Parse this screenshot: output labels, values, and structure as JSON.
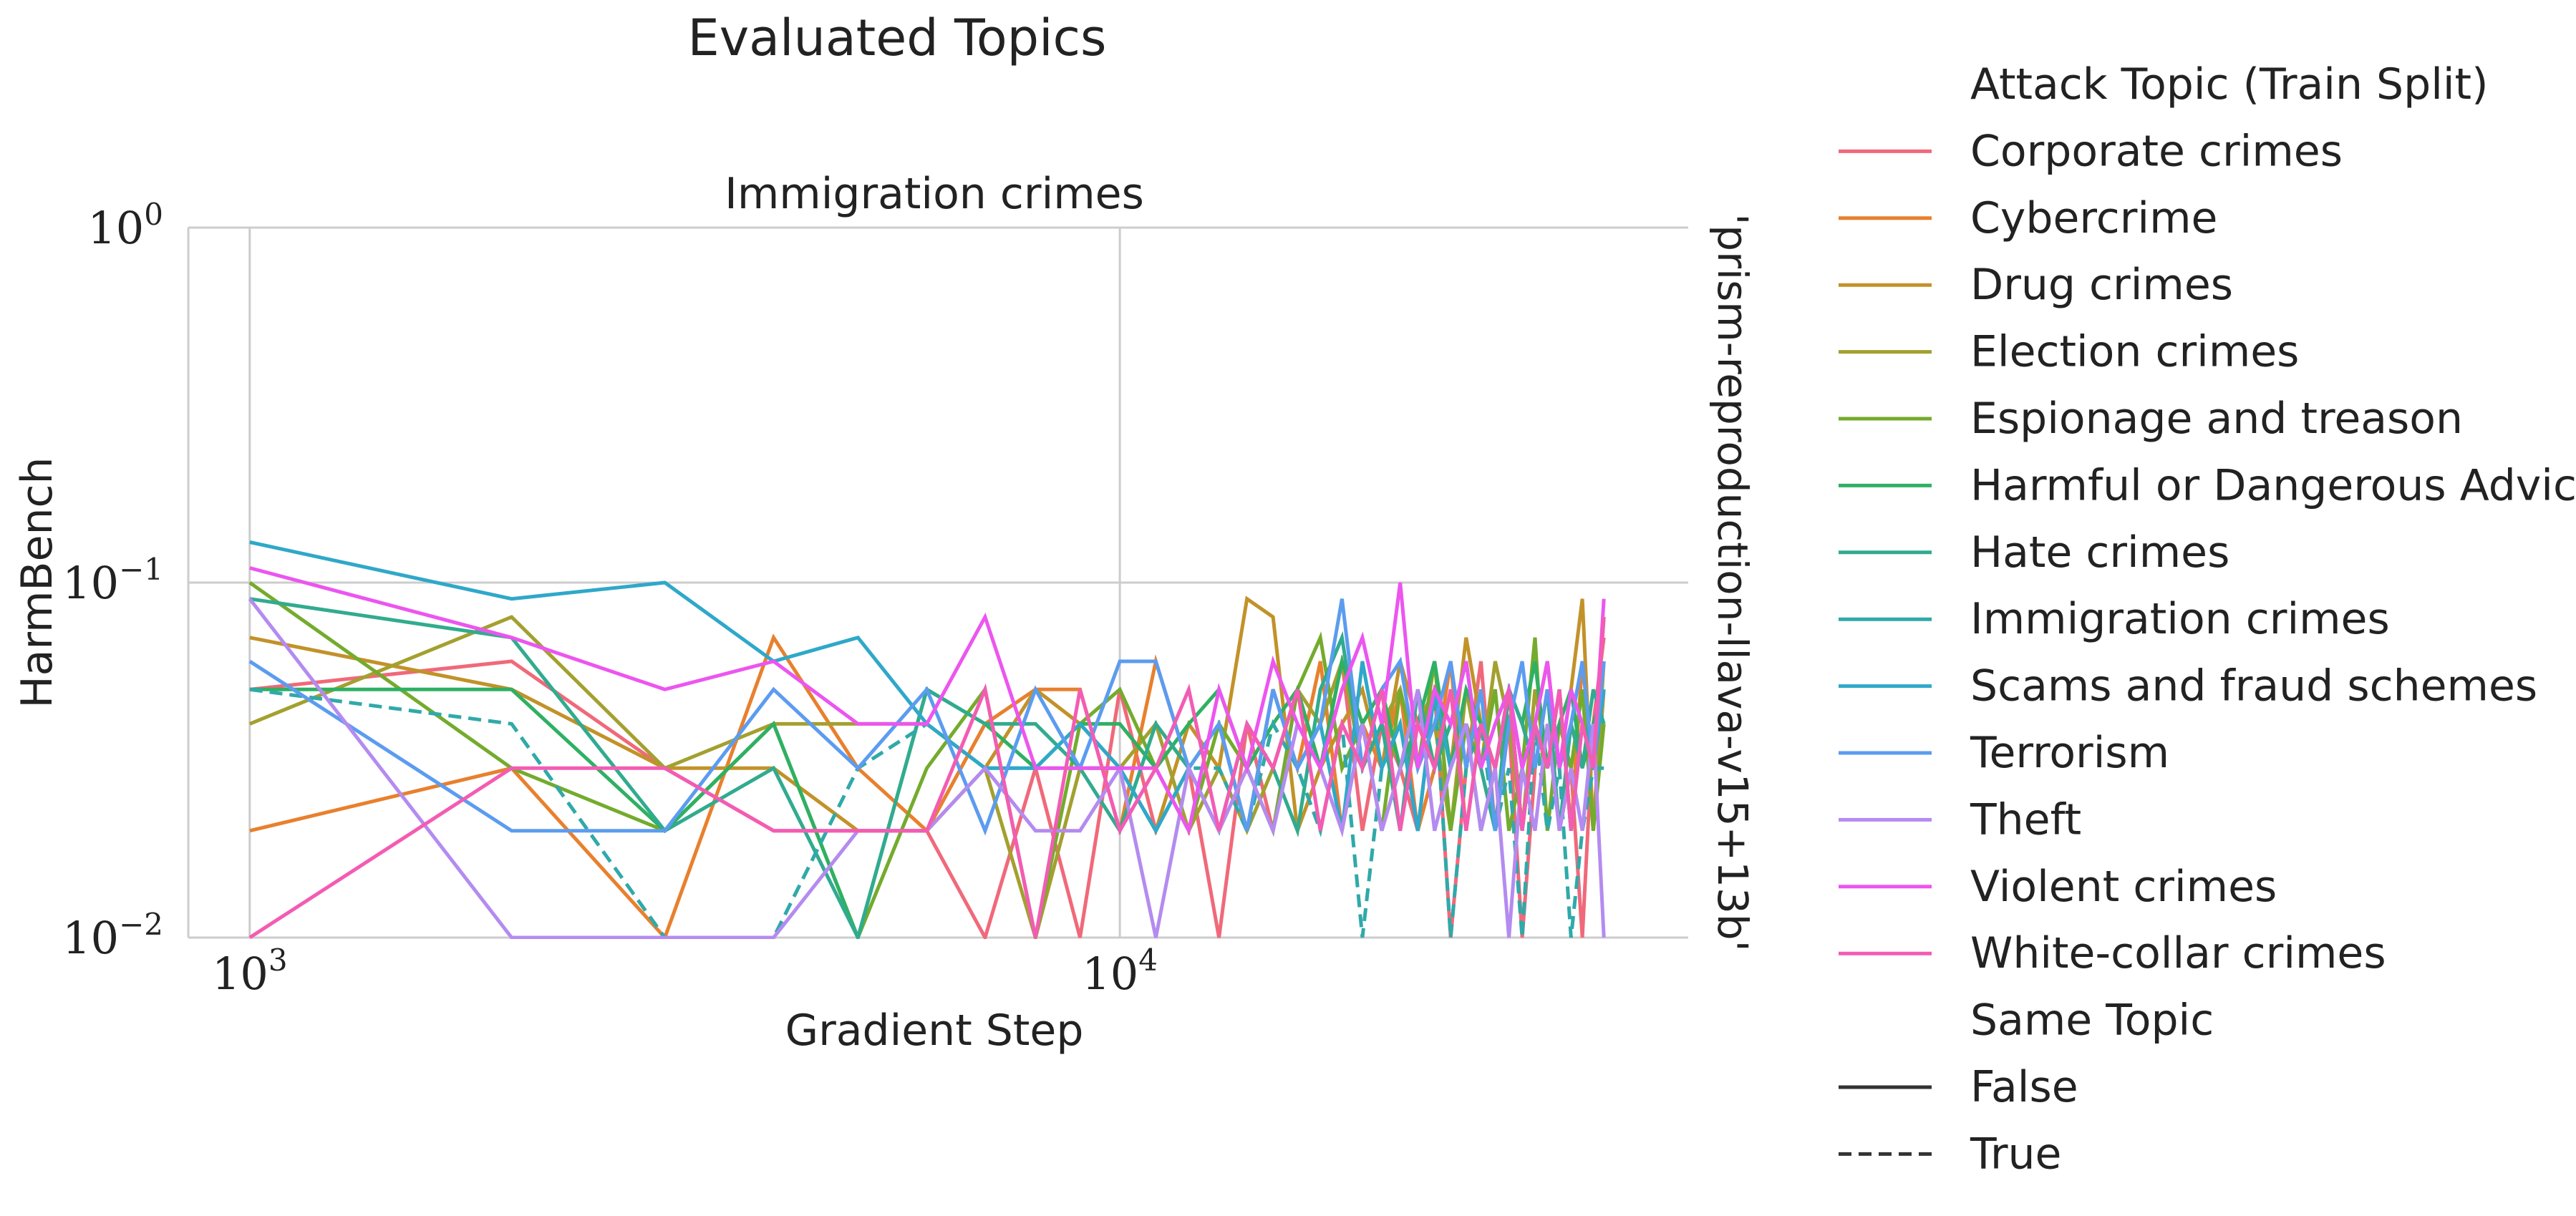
{
  "chart_data": {
    "type": "line",
    "suptitle": "Evaluated Topics",
    "title": "Immigration crimes",
    "xlabel": "Gradient Step",
    "ylabel": "HarmBench",
    "row_label": "'prism-reproduction-llava-v15+13b'",
    "x_scale": "log",
    "y_scale": "log",
    "xlim": [
      850,
      45000
    ],
    "ylim": [
      0.01,
      1.0
    ],
    "x_ticks": [
      {
        "value": 1000,
        "base": "10",
        "exp": "3"
      },
      {
        "value": 10000,
        "base": "10",
        "exp": "4"
      }
    ],
    "y_ticks": [
      {
        "value": 0.01,
        "base": "10",
        "exp": "−2"
      },
      {
        "value": 0.1,
        "base": "10",
        "exp": "−1"
      },
      {
        "value": 1.0,
        "base": "10",
        "exp": "0"
      }
    ],
    "grid": true,
    "legend_placement": "right, outside plot",
    "legend": {
      "hue_title": "Attack Topic (Train Split)",
      "hue_entries": [
        {
          "label": "Corporate crimes",
          "color": "#f0697a"
        },
        {
          "label": "Cybercrime",
          "color": "#e8802e"
        },
        {
          "label": "Drug crimes",
          "color": "#c29229"
        },
        {
          "label": "Election crimes",
          "color": "#a3a02f"
        },
        {
          "label": "Espionage and treason",
          "color": "#74ab2d"
        },
        {
          "label": "Harmful or Dangerous Advice",
          "color": "#2fb063"
        },
        {
          "label": "Hate crimes",
          "color": "#31ab8f"
        },
        {
          "label": "Immigration crimes",
          "color": "#30a9a9"
        },
        {
          "label": "Scams and fraud schemes",
          "color": "#2fa8c9"
        },
        {
          "label": "Terrorism",
          "color": "#5c9cf0"
        },
        {
          "label": "Theft",
          "color": "#b48bf0"
        },
        {
          "label": "Violent crimes",
          "color": "#ec55ef"
        },
        {
          "label": "White-collar crimes",
          "color": "#f35cb3"
        }
      ],
      "style_title": "Same Topic",
      "style_entries": [
        {
          "label": "False",
          "dash": "solid"
        },
        {
          "label": "True",
          "dash": "dashed"
        }
      ]
    },
    "x": [
      1000,
      2000,
      3000,
      4000,
      5000,
      6000,
      7000,
      8000,
      9000,
      10000,
      11000,
      12000,
      13000,
      14000,
      15000,
      16000,
      17000,
      18000,
      19000,
      20000,
      21000,
      22000,
      23000,
      24000,
      25000,
      26000,
      27000,
      28000,
      29000,
      30000,
      31000,
      32000,
      33000,
      34000,
      35000,
      36000
    ],
    "series": [
      {
        "name": "Corporate crimes",
        "color": "#f0697a",
        "dashed": false,
        "values": [
          0.05,
          0.06,
          0.03,
          0.02,
          0.02,
          0.02,
          0.01,
          0.03,
          0.01,
          0.05,
          0.02,
          0.03,
          0.01,
          0.04,
          0.02,
          0.05,
          0.03,
          0.06,
          0.02,
          0.04,
          0.03,
          0.02,
          0.05,
          0.01,
          0.03,
          0.06,
          0.02,
          0.04,
          0.01,
          0.03,
          0.05,
          0.02,
          0.03,
          0.01,
          0.04,
          0.07
        ]
      },
      {
        "name": "Cybercrime",
        "color": "#e8802e",
        "dashed": false,
        "values": [
          0.02,
          0.03,
          0.01,
          0.07,
          0.03,
          0.02,
          0.04,
          0.05,
          0.05,
          0.02,
          0.06,
          0.03,
          0.04,
          0.02,
          0.05,
          0.03,
          0.06,
          0.02,
          0.04,
          0.03,
          0.05,
          0.02,
          0.03,
          0.06,
          0.02,
          0.04,
          0.03,
          0.05,
          0.02,
          0.04,
          0.03,
          0.05,
          0.02,
          0.06,
          0.03,
          0.08
        ]
      },
      {
        "name": "Drug crimes",
        "color": "#c29229",
        "dashed": false,
        "values": [
          0.07,
          0.05,
          0.03,
          0.03,
          0.02,
          0.02,
          0.03,
          0.05,
          0.04,
          0.03,
          0.02,
          0.04,
          0.03,
          0.09,
          0.08,
          0.02,
          0.03,
          0.04,
          0.05,
          0.03,
          0.06,
          0.04,
          0.05,
          0.03,
          0.07,
          0.04,
          0.03,
          0.05,
          0.02,
          0.04,
          0.06,
          0.03,
          0.05,
          0.09,
          0.02,
          0.05
        ]
      },
      {
        "name": "Election crimes",
        "color": "#a3a02f",
        "dashed": false,
        "values": [
          0.04,
          0.08,
          0.03,
          0.04,
          0.04,
          0.04,
          0.03,
          0.01,
          0.03,
          0.03,
          0.04,
          0.02,
          0.03,
          0.02,
          0.03,
          0.05,
          0.04,
          0.06,
          0.03,
          0.04,
          0.05,
          0.03,
          0.04,
          0.02,
          0.05,
          0.03,
          0.06,
          0.04,
          0.02,
          0.05,
          0.03,
          0.04,
          0.03,
          0.05,
          0.02,
          0.06
        ]
      },
      {
        "name": "Espionage and treason",
        "color": "#74ab2d",
        "dashed": false,
        "values": [
          0.1,
          0.03,
          0.02,
          0.04,
          0.01,
          0.03,
          0.05,
          0.01,
          0.04,
          0.05,
          0.03,
          0.02,
          0.04,
          0.03,
          0.02,
          0.05,
          0.07,
          0.03,
          0.04,
          0.02,
          0.05,
          0.03,
          0.06,
          0.02,
          0.04,
          0.03,
          0.05,
          0.02,
          0.03,
          0.07,
          0.02,
          0.04,
          0.03,
          0.05,
          0.02,
          0.04
        ]
      },
      {
        "name": "Harmful or Dangerous Advice",
        "color": "#2fb063",
        "dashed": false,
        "values": [
          0.05,
          0.05,
          0.02,
          0.04,
          0.01,
          0.05,
          0.04,
          0.03,
          0.04,
          0.04,
          0.03,
          0.04,
          0.05,
          0.03,
          0.04,
          0.05,
          0.03,
          0.06,
          0.04,
          0.05,
          0.03,
          0.04,
          0.06,
          0.03,
          0.05,
          0.04,
          0.03,
          0.05,
          0.04,
          0.06,
          0.03,
          0.04,
          0.05,
          0.03,
          0.04,
          0.05
        ]
      },
      {
        "name": "Hate crimes",
        "color": "#31ab8f",
        "dashed": false,
        "values": [
          0.09,
          0.07,
          0.02,
          0.03,
          0.01,
          0.05,
          0.04,
          0.04,
          0.03,
          0.02,
          0.04,
          0.03,
          0.02,
          0.04,
          0.03,
          0.02,
          0.05,
          0.07,
          0.03,
          0.04,
          0.02,
          0.05,
          0.03,
          0.04,
          0.06,
          0.03,
          0.02,
          0.05,
          0.04,
          0.03,
          0.05,
          0.02,
          0.04,
          0.03,
          0.05,
          0.04
        ]
      },
      {
        "name": "Immigration crimes",
        "color": "#30a9a9",
        "dashed": true,
        "values": [
          0.05,
          0.04,
          0.01,
          0.01,
          0.03,
          0.04,
          0.03,
          0.03,
          0.03,
          0.03,
          0.02,
          0.03,
          0.03,
          0.02,
          0.04,
          0.03,
          0.02,
          0.04,
          0.01,
          0.03,
          0.04,
          0.02,
          0.05,
          0.01,
          0.03,
          0.04,
          0.02,
          0.03,
          0.01,
          0.04,
          0.02,
          0.03,
          0.01,
          0.02,
          0.03,
          0.03
        ]
      },
      {
        "name": "Scams and fraud schemes",
        "color": "#2fa8c9",
        "dashed": false,
        "values": [
          0.13,
          0.09,
          0.1,
          0.06,
          0.07,
          0.04,
          0.03,
          0.03,
          0.04,
          0.03,
          0.02,
          0.03,
          0.04,
          0.02,
          0.05,
          0.03,
          0.04,
          0.02,
          0.06,
          0.03,
          0.04,
          0.02,
          0.05,
          0.03,
          0.04,
          0.02,
          0.03,
          0.05,
          0.02,
          0.04,
          0.03,
          0.05,
          0.02,
          0.04,
          0.03,
          0.05
        ]
      },
      {
        "name": "Terrorism",
        "color": "#5c9cf0",
        "dashed": false,
        "values": [
          0.06,
          0.02,
          0.02,
          0.05,
          0.03,
          0.05,
          0.02,
          0.05,
          0.03,
          0.06,
          0.06,
          0.03,
          0.04,
          0.02,
          0.05,
          0.03,
          0.04,
          0.09,
          0.03,
          0.05,
          0.06,
          0.03,
          0.04,
          0.06,
          0.03,
          0.05,
          0.02,
          0.04,
          0.06,
          0.03,
          0.05,
          0.03,
          0.04,
          0.06,
          0.03,
          0.06
        ]
      },
      {
        "name": "Theft",
        "color": "#b48bf0",
        "dashed": false,
        "values": [
          0.09,
          0.01,
          0.01,
          0.01,
          0.02,
          0.02,
          0.03,
          0.02,
          0.02,
          0.03,
          0.01,
          0.03,
          0.02,
          0.03,
          0.02,
          0.04,
          0.03,
          0.02,
          0.04,
          0.02,
          0.03,
          0.05,
          0.02,
          0.03,
          0.04,
          0.02,
          0.03,
          0.01,
          0.03,
          0.02,
          0.04,
          0.02,
          0.03,
          0.02,
          0.04,
          0.01
        ]
      },
      {
        "name": "Violent crimes",
        "color": "#ec55ef",
        "dashed": false,
        "values": [
          0.11,
          0.07,
          0.05,
          0.06,
          0.04,
          0.04,
          0.08,
          0.03,
          0.03,
          0.03,
          0.03,
          0.02,
          0.05,
          0.03,
          0.06,
          0.04,
          0.03,
          0.05,
          0.07,
          0.04,
          0.1,
          0.03,
          0.05,
          0.04,
          0.06,
          0.03,
          0.04,
          0.05,
          0.03,
          0.04,
          0.06,
          0.03,
          0.05,
          0.04,
          0.03,
          0.09
        ]
      },
      {
        "name": "White-collar crimes",
        "color": "#f35cb3",
        "dashed": false,
        "values": [
          0.01,
          0.03,
          0.03,
          0.02,
          0.02,
          0.02,
          0.05,
          0.01,
          0.05,
          0.02,
          0.03,
          0.05,
          0.02,
          0.04,
          0.03,
          0.05,
          0.02,
          0.04,
          0.03,
          0.05,
          0.02,
          0.04,
          0.03,
          0.05,
          0.02,
          0.04,
          0.03,
          0.05,
          0.02,
          0.04,
          0.03,
          0.05,
          0.02,
          0.04,
          0.03,
          0.08
        ]
      }
    ]
  }
}
